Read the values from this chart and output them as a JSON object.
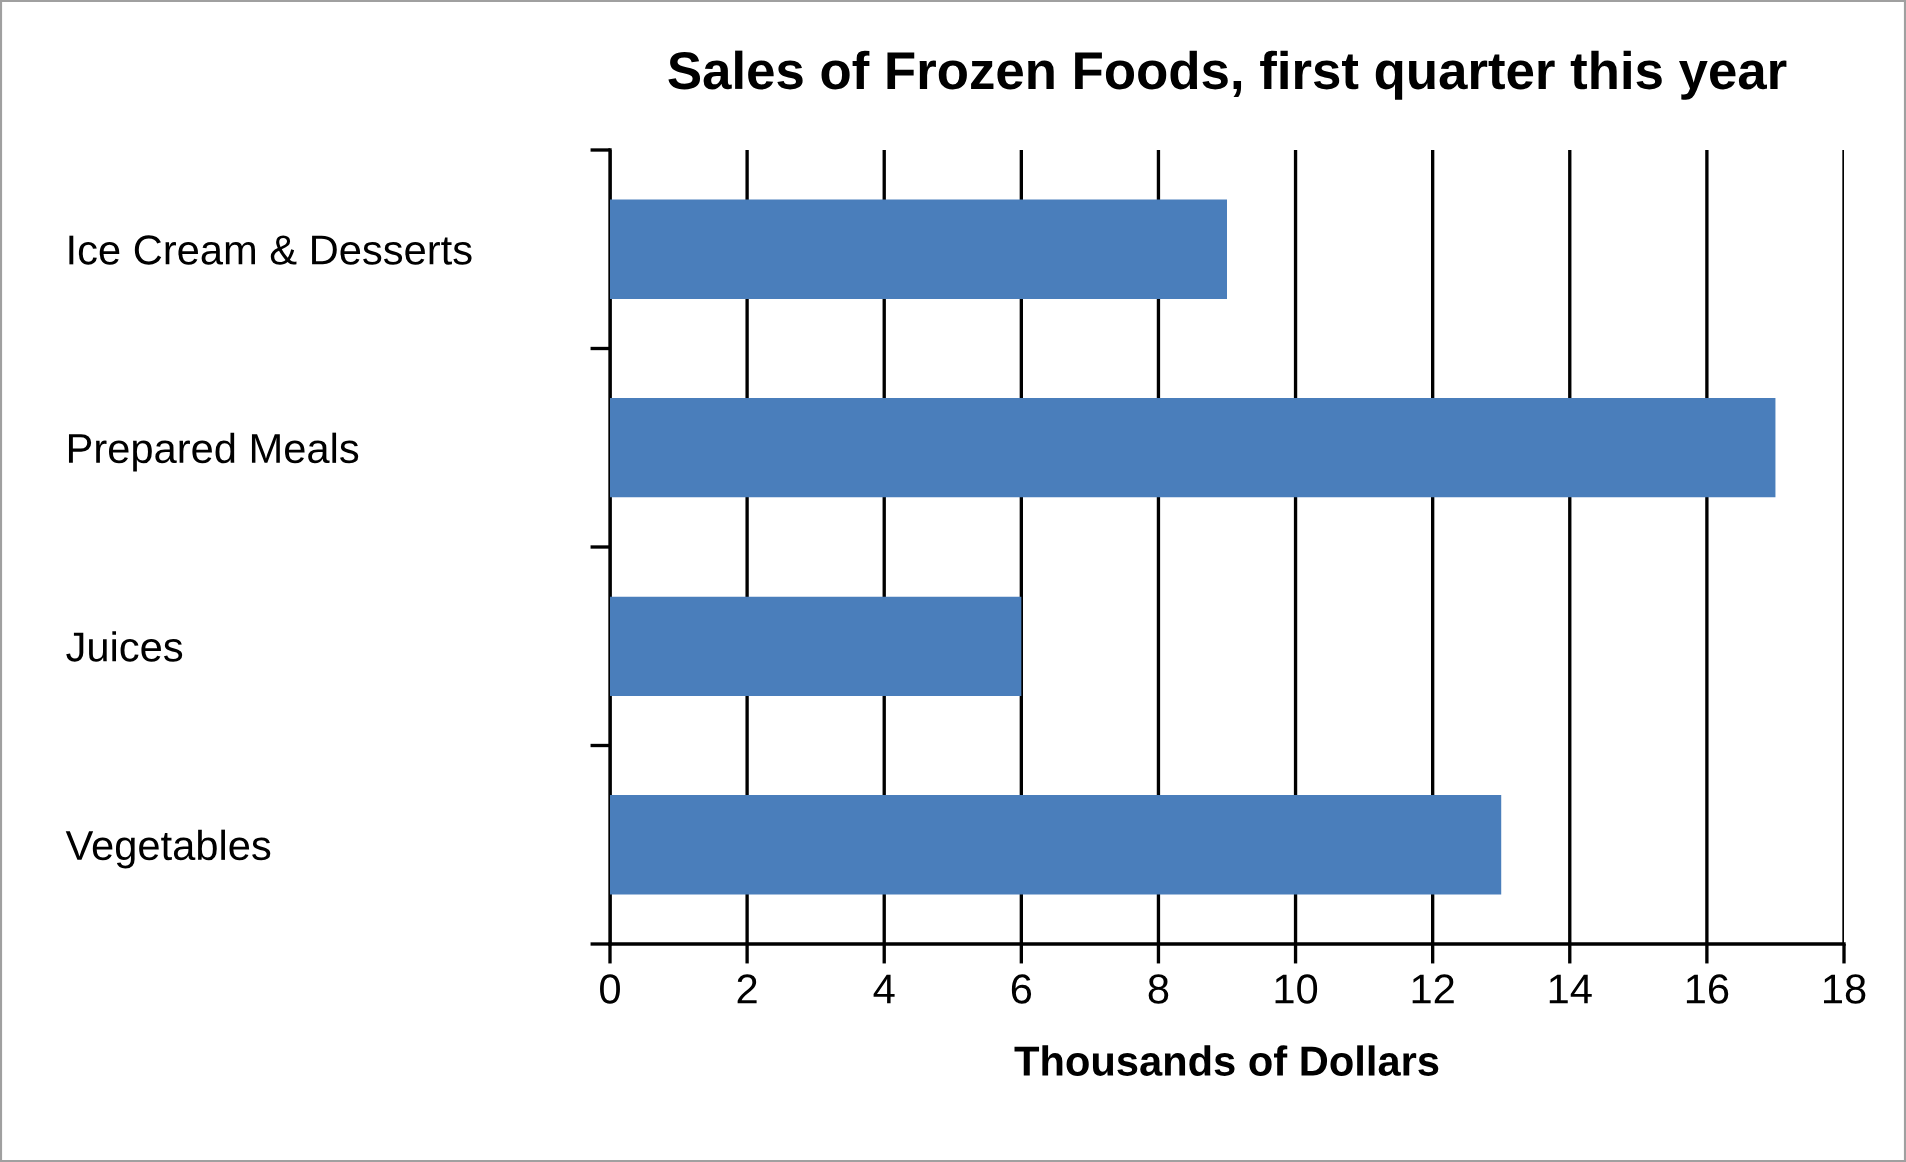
{
  "chart_data": {
    "type": "bar",
    "orientation": "horizontal",
    "title": "Sales of Frozen Foods, first quarter this year",
    "xlabel": "Thousands of Dollars",
    "categories": [
      "Ice Cream & Desserts",
      "Prepared Meals",
      "Juices",
      "Vegetables"
    ],
    "values": [
      9,
      17,
      6,
      13
    ],
    "color": "#4a7ebb",
    "xlim": [
      0,
      18
    ],
    "xticks": [
      0,
      2,
      4,
      6,
      8,
      10,
      12,
      14,
      16,
      18
    ],
    "grid": "x"
  }
}
